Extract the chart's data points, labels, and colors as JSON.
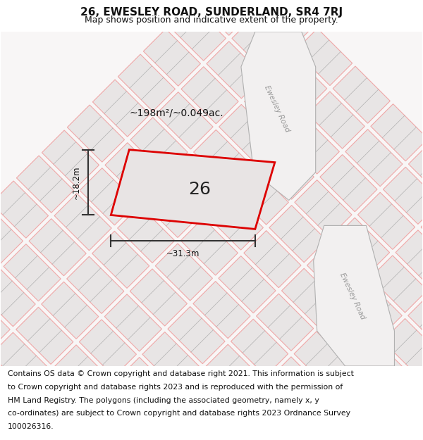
{
  "title": "26, EWESLEY ROAD, SUNDERLAND, SR4 7RJ",
  "subtitle": "Map shows position and indicative extent of the property.",
  "footer_lines": [
    "Contains OS data © Crown copyright and database right 2021. This information is subject",
    "to Crown copyright and database rights 2023 and is reproduced with the permission of",
    "HM Land Registry. The polygons (including the associated geometry, namely x, y",
    "co-ordinates) are subject to Crown copyright and database rights 2023 Ordnance Survey",
    "100026316."
  ],
  "map_bg": "#f7f5f5",
  "block_fill": "#e8e5e5",
  "block_edge": "#c8c0c0",
  "road_line_color": "#f0a8a8",
  "road_grey_color": "#b0b0b0",
  "ewesley_road_fill": "#f0eeee",
  "highlight_color": "#dd0000",
  "highlight_fill": "#e8e4e4",
  "area_text": "~198m²/~0.049ac.",
  "property_number": "26",
  "dim_width": "~31.3m",
  "dim_height": "~18.2m",
  "road_label": "Ewesley Road",
  "title_fontsize": 11,
  "subtitle_fontsize": 9,
  "footer_fontsize": 7.8
}
